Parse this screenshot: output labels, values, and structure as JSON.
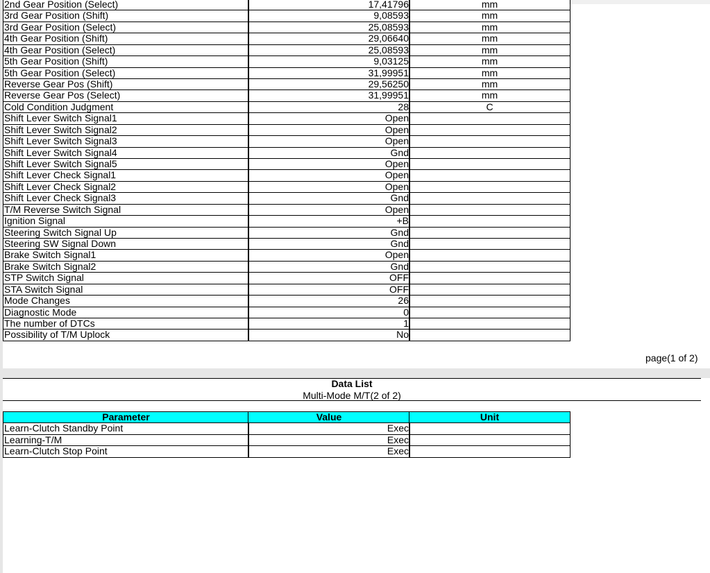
{
  "page1": {
    "rows": [
      {
        "parameter": "2nd Gear Position (Select)",
        "value": "17,41796",
        "unit": "mm"
      },
      {
        "parameter": "3rd Gear Position (Shift)",
        "value": "9,08593",
        "unit": "mm"
      },
      {
        "parameter": "3rd Gear Position (Select)",
        "value": "25,08593",
        "unit": "mm"
      },
      {
        "parameter": "4th Gear Position (Shift)",
        "value": "29,06640",
        "unit": "mm"
      },
      {
        "parameter": "4th Gear Position (Select)",
        "value": "25,08593",
        "unit": "mm"
      },
      {
        "parameter": "5th Gear Position (Shift)",
        "value": "9,03125",
        "unit": "mm"
      },
      {
        "parameter": "5th Gear Position (Select)",
        "value": "31,99951",
        "unit": "mm"
      },
      {
        "parameter": "Reverse Gear Pos (Shift)",
        "value": "29,56250",
        "unit": "mm"
      },
      {
        "parameter": "Reverse Gear Pos (Select)",
        "value": "31,99951",
        "unit": "mm"
      },
      {
        "parameter": "Cold Condition Judgment",
        "value": "28",
        "unit": "C"
      },
      {
        "parameter": "Shift Lever Switch Signal1",
        "value": "Open"
      },
      {
        "parameter": "Shift Lever Switch Signal2",
        "value": "Open"
      },
      {
        "parameter": "Shift Lever Switch Signal3",
        "value": "Open"
      },
      {
        "parameter": "Shift Lever Switch Signal4",
        "value": "Gnd"
      },
      {
        "parameter": "Shift Lever Switch Signal5",
        "value": "Open"
      },
      {
        "parameter": "Shift Lever Check Signal1",
        "value": "Open"
      },
      {
        "parameter": "Shift Lever Check Signal2",
        "value": "Open"
      },
      {
        "parameter": "Shift Lever Check Signal3",
        "value": "Gnd"
      },
      {
        "parameter": "T/M Reverse Switch Signal",
        "value": "Open"
      },
      {
        "parameter": "Ignition Signal",
        "value": "+B"
      },
      {
        "parameter": "Steering Switch Signal Up",
        "value": "Gnd"
      },
      {
        "parameter": "Steering SW Signal Down",
        "value": "Gnd"
      },
      {
        "parameter": "Brake Switch Signal1",
        "value": "Open"
      },
      {
        "parameter": "Brake Switch Signal2",
        "value": "Gnd"
      },
      {
        "parameter": "STP Switch Signal",
        "value": "OFF"
      },
      {
        "parameter": "STA Switch Signal",
        "value": "OFF"
      },
      {
        "parameter": "Mode Changes",
        "value": "26"
      },
      {
        "parameter": "Diagnostic Mode",
        "value": "0"
      },
      {
        "parameter": "The number of DTCs",
        "value": "1"
      },
      {
        "parameter": "Possibility of T/M Uplock",
        "value": "No"
      }
    ],
    "page_label": "page(1 of 2)"
  },
  "page2": {
    "title": "Data List",
    "subtitle": "Multi-Mode M/T(2 of 2)",
    "header": {
      "parameter": "Parameter",
      "value": "Value",
      "unit": "Unit"
    },
    "rows": [
      {
        "parameter": "Learn-Clutch Standby Point",
        "value": "Exec"
      },
      {
        "parameter": "Learning-T/M",
        "value": "Exec"
      },
      {
        "parameter": "Learn-Clutch Stop Point",
        "value": "Exec"
      }
    ]
  }
}
